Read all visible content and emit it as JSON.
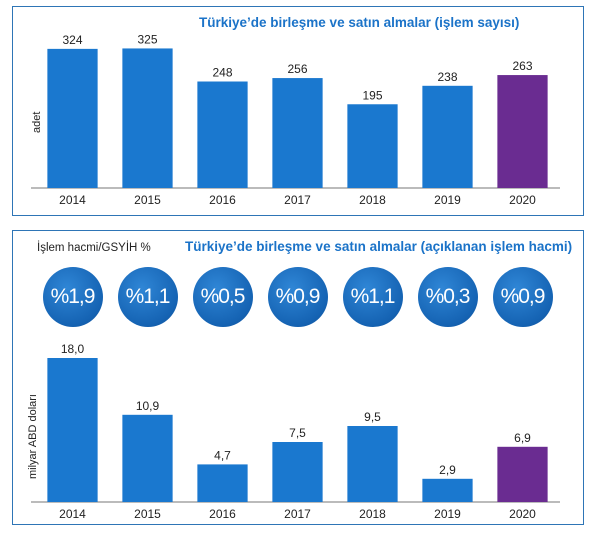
{
  "chart_data": [
    {
      "type": "bar",
      "title": "Türkiye’de birleşme ve satın almalar (işlem sayısı)",
      "ylabel": "adet",
      "categories": [
        "2014",
        "2015",
        "2016",
        "2017",
        "2018",
        "2019",
        "2020"
      ],
      "values": [
        324,
        325,
        248,
        256,
        195,
        238,
        263
      ],
      "value_labels": [
        "324",
        "325",
        "248",
        "256",
        "195",
        "238",
        "263"
      ],
      "ylim": [
        0,
        340
      ],
      "colors": [
        "#1a78cf",
        "#1a78cf",
        "#1a78cf",
        "#1a78cf",
        "#1a78cf",
        "#1a78cf",
        "#6a2c91"
      ]
    },
    {
      "type": "bar",
      "title": "Türkiye’de birleşme ve satın almalar (açıklanan işlem hacmi)",
      "ylabel": "milyar ABD doları",
      "categories": [
        "2014",
        "2015",
        "2016",
        "2017",
        "2018",
        "2019",
        "2020"
      ],
      "values": [
        18.0,
        10.9,
        4.7,
        7.5,
        9.5,
        2.9,
        6.9
      ],
      "value_labels": [
        "18,0",
        "10,9",
        "4,7",
        "7,5",
        "9,5",
        "2,9",
        "6,9"
      ],
      "ylim": [
        0,
        18.5
      ],
      "colors": [
        "#1a78cf",
        "#1a78cf",
        "#1a78cf",
        "#1a78cf",
        "#1a78cf",
        "#1a78cf",
        "#6a2c91"
      ],
      "ratio_label": "İşlem hacmi/GSYİH %",
      "ratios": [
        "%1,9",
        "%1,1",
        "%0,5",
        "%0,9",
        "%1,1",
        "%0,3",
        "%0,9"
      ]
    }
  ]
}
